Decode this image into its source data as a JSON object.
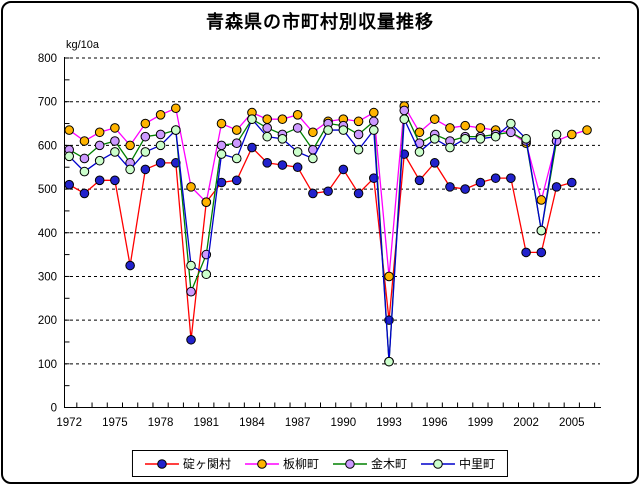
{
  "window": {
    "title": "青森県の市町村別収量推移"
  },
  "chart_data": {
    "type": "line",
    "title": "青森県の市町村別収量推移",
    "y_unit_label": "kg/10a",
    "ylim": [
      0,
      800
    ],
    "y_tick_step": 100,
    "y_minor_tick_step": 50,
    "y_tick_labels": [
      0,
      100,
      200,
      300,
      400,
      500,
      600,
      700,
      800
    ],
    "x_tick_labels": [
      1972,
      1975,
      1978,
      1981,
      1984,
      1987,
      1990,
      1993,
      1996,
      1999,
      2002,
      2005
    ],
    "years": [
      1972,
      1973,
      1974,
      1975,
      1976,
      1977,
      1978,
      1979,
      1980,
      1981,
      1982,
      1983,
      1984,
      1985,
      1986,
      1987,
      1988,
      1989,
      1990,
      1991,
      1992,
      1993,
      1994,
      1995,
      1996,
      1997,
      1998,
      1999,
      2000,
      2001,
      2002,
      2003,
      2004,
      2005,
      2006
    ],
    "grid": "horizontal-dashed",
    "legend_position": "bottom",
    "series": [
      {
        "name": "碇ヶ関村",
        "line_color": "#FF0000",
        "marker_color": "#2222CC",
        "values": [
          510,
          490,
          520,
          520,
          325,
          545,
          560,
          560,
          155,
          470,
          515,
          520,
          595,
          560,
          555,
          550,
          490,
          495,
          545,
          490,
          525,
          200,
          580,
          520,
          560,
          505,
          500,
          515,
          525,
          525,
          355,
          355,
          505,
          515,
          null
        ]
      },
      {
        "name": "板柳町",
        "line_color": "#FF00FF",
        "marker_color": "#FFB400",
        "values": [
          635,
          610,
          630,
          640,
          600,
          650,
          670,
          685,
          505,
          470,
          650,
          635,
          675,
          660,
          660,
          670,
          630,
          655,
          660,
          655,
          675,
          300,
          690,
          630,
          660,
          640,
          645,
          640,
          635,
          630,
          605,
          475,
          610,
          625,
          635
        ]
      },
      {
        "name": "金木町",
        "line_color": "#008000",
        "marker_color": "#CC99FF",
        "values": [
          590,
          570,
          600,
          610,
          560,
          620,
          625,
          635,
          265,
          350,
          600,
          605,
          660,
          640,
          625,
          640,
          590,
          650,
          645,
          625,
          655,
          105,
          680,
          605,
          625,
          610,
          620,
          620,
          625,
          630,
          610,
          405,
          610,
          null,
          null
        ]
      },
      {
        "name": "中里町",
        "line_color": "#0000CC",
        "marker_color": "#CCFFCC",
        "values": [
          575,
          540,
          565,
          585,
          545,
          585,
          600,
          635,
          325,
          305,
          580,
          570,
          660,
          620,
          615,
          585,
          570,
          635,
          635,
          590,
          635,
          105,
          660,
          585,
          615,
          595,
          615,
          615,
          620,
          650,
          615,
          405,
          625,
          null,
          null
        ]
      }
    ]
  }
}
